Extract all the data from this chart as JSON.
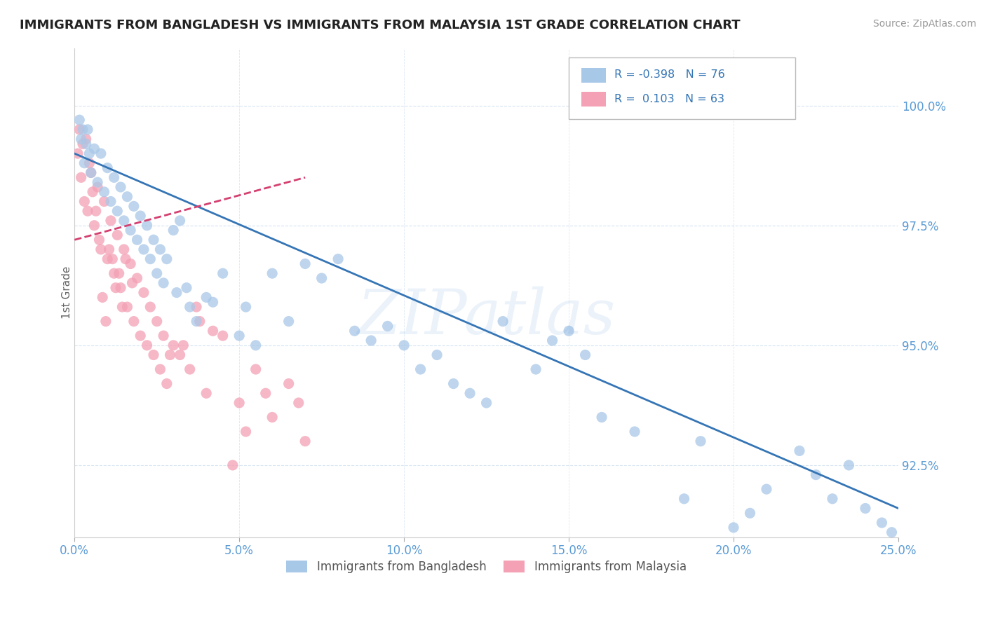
{
  "title": "IMMIGRANTS FROM BANGLADESH VS IMMIGRANTS FROM MALAYSIA 1ST GRADE CORRELATION CHART",
  "source": "Source: ZipAtlas.com",
  "ylabel_label": "1st Grade",
  "x_ticks": [
    0.0,
    5.0,
    10.0,
    15.0,
    20.0,
    25.0
  ],
  "y_ticks": [
    92.5,
    95.0,
    97.5,
    100.0
  ],
  "x_min": 0.0,
  "x_max": 25.0,
  "y_min": 91.0,
  "y_max": 101.2,
  "legend_blue_R": "-0.398",
  "legend_blue_N": "76",
  "legend_pink_R": "0.103",
  "legend_pink_N": "63",
  "label_bangladesh": "Immigrants from Bangladesh",
  "label_malaysia": "Immigrants from Malaysia",
  "blue_color": "#a8c8e8",
  "pink_color": "#f4a0b5",
  "blue_line_color": "#3575b5",
  "pink_line_color": "#d44070",
  "watermark": "ZIPatlas",
  "blue_scatter_x": [
    0.2,
    0.3,
    0.4,
    0.5,
    0.6,
    0.7,
    0.8,
    0.9,
    1.0,
    1.1,
    1.2,
    1.3,
    1.4,
    1.5,
    1.6,
    1.7,
    1.8,
    1.9,
    2.0,
    2.1,
    2.2,
    2.3,
    2.4,
    2.5,
    2.6,
    2.7,
    2.8,
    3.0,
    3.1,
    3.2,
    3.4,
    3.5,
    3.7,
    4.0,
    4.2,
    4.5,
    5.0,
    5.2,
    5.5,
    6.0,
    6.5,
    7.0,
    7.5,
    8.0,
    8.5,
    9.0,
    9.5,
    10.0,
    10.5,
    11.0,
    11.5,
    12.0,
    12.5,
    13.0,
    14.0,
    14.5,
    15.0,
    15.5,
    16.0,
    17.0,
    18.5,
    19.0,
    20.0,
    20.5,
    21.0,
    22.0,
    22.5,
    23.0,
    23.5,
    24.0,
    24.5,
    24.8,
    0.15,
    0.25,
    0.35,
    0.45
  ],
  "blue_scatter_y": [
    99.3,
    98.8,
    99.5,
    98.6,
    99.1,
    98.4,
    99.0,
    98.2,
    98.7,
    98.0,
    98.5,
    97.8,
    98.3,
    97.6,
    98.1,
    97.4,
    97.9,
    97.2,
    97.7,
    97.0,
    97.5,
    96.8,
    97.2,
    96.5,
    97.0,
    96.3,
    96.8,
    97.4,
    96.1,
    97.6,
    96.2,
    95.8,
    95.5,
    96.0,
    95.9,
    96.5,
    95.2,
    95.8,
    95.0,
    96.5,
    95.5,
    96.7,
    96.4,
    96.8,
    95.3,
    95.1,
    95.4,
    95.0,
    94.5,
    94.8,
    94.2,
    94.0,
    93.8,
    95.5,
    94.5,
    95.1,
    95.3,
    94.8,
    93.5,
    93.2,
    91.8,
    93.0,
    91.2,
    91.5,
    92.0,
    92.8,
    92.3,
    91.8,
    92.5,
    91.6,
    91.3,
    91.1,
    99.7,
    99.5,
    99.2,
    99.0
  ],
  "pink_scatter_x": [
    0.1,
    0.15,
    0.2,
    0.25,
    0.3,
    0.35,
    0.4,
    0.5,
    0.6,
    0.7,
    0.8,
    0.9,
    1.0,
    1.1,
    1.2,
    1.3,
    1.4,
    1.5,
    1.6,
    1.7,
    1.8,
    1.9,
    2.0,
    2.1,
    2.2,
    2.3,
    2.4,
    2.5,
    2.6,
    2.7,
    2.8,
    3.0,
    3.2,
    3.5,
    3.8,
    4.0,
    4.5,
    5.0,
    5.5,
    6.0,
    6.5,
    7.0,
    1.05,
    1.15,
    1.25,
    0.55,
    0.65,
    0.75,
    0.85,
    0.95,
    1.35,
    1.45,
    1.55,
    3.3,
    4.2,
    2.9,
    3.7,
    1.75,
    0.45,
    5.8,
    5.2,
    4.8,
    6.8
  ],
  "pink_scatter_y": [
    99.0,
    99.5,
    98.5,
    99.2,
    98.0,
    99.3,
    97.8,
    98.6,
    97.5,
    98.3,
    97.0,
    98.0,
    96.8,
    97.6,
    96.5,
    97.3,
    96.2,
    97.0,
    95.8,
    96.7,
    95.5,
    96.4,
    95.2,
    96.1,
    95.0,
    95.8,
    94.8,
    95.5,
    94.5,
    95.2,
    94.2,
    95.0,
    94.8,
    94.5,
    95.5,
    94.0,
    95.2,
    93.8,
    94.5,
    93.5,
    94.2,
    93.0,
    97.0,
    96.8,
    96.2,
    98.2,
    97.8,
    97.2,
    96.0,
    95.5,
    96.5,
    95.8,
    96.8,
    95.0,
    95.3,
    94.8,
    95.8,
    96.3,
    98.8,
    94.0,
    93.2,
    92.5,
    93.8
  ],
  "blue_line_x": [
    0.0,
    25.0
  ],
  "blue_line_y": [
    99.0,
    91.6
  ],
  "pink_line_x": [
    0.0,
    7.0
  ],
  "pink_line_y": [
    97.2,
    98.5
  ]
}
